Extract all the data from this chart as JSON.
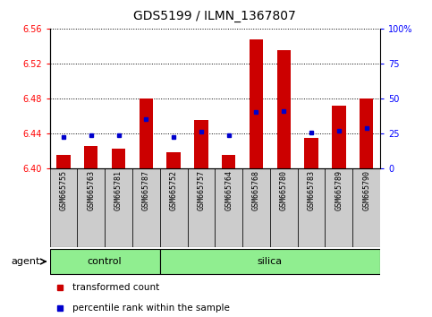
{
  "title": "GDS5199 / ILMN_1367807",
  "samples": [
    "GSM665755",
    "GSM665763",
    "GSM665781",
    "GSM665787",
    "GSM665752",
    "GSM665757",
    "GSM665764",
    "GSM665768",
    "GSM665780",
    "GSM665783",
    "GSM665789",
    "GSM665790"
  ],
  "groups": [
    "control",
    "control",
    "control",
    "control",
    "silica",
    "silica",
    "silica",
    "silica",
    "silica",
    "silica",
    "silica",
    "silica"
  ],
  "bar_values": [
    6.415,
    6.425,
    6.422,
    6.48,
    6.418,
    6.455,
    6.415,
    6.548,
    6.535,
    6.435,
    6.472,
    6.48
  ],
  "percentile_values": [
    6.436,
    6.438,
    6.438,
    6.456,
    6.436,
    6.442,
    6.438,
    6.464,
    6.465,
    6.441,
    6.443,
    6.446
  ],
  "y_min": 6.4,
  "y_max": 6.56,
  "y_ticks": [
    6.4,
    6.44,
    6.48,
    6.52,
    6.56
  ],
  "y2_ticks": [
    0,
    25,
    50,
    75,
    100
  ],
  "bar_color": "#cc0000",
  "percentile_color": "#0000cc",
  "group_color": "#90ee90",
  "xtick_bg_color": "#cccccc",
  "agent_label": "agent",
  "control_label": "control",
  "silica_label": "silica",
  "legend_bar": "transformed count",
  "legend_pct": "percentile rank within the sample",
  "n_control": 4,
  "n_silica": 8
}
